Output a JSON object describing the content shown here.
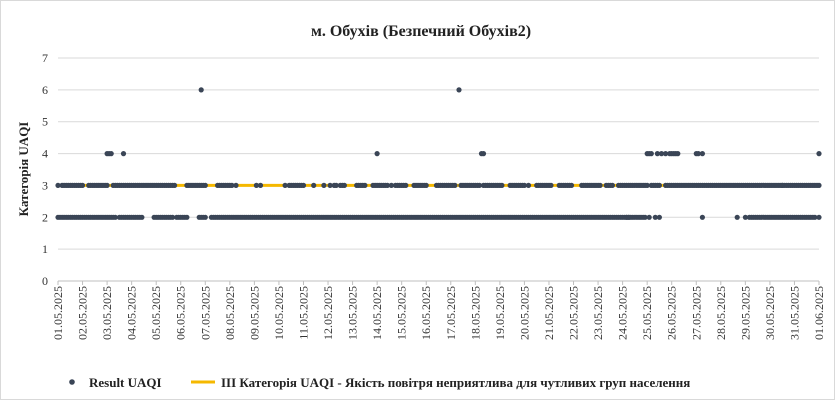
{
  "chart_data": {
    "type": "scatter",
    "title": "м. Обухів (Безпечний Обухів2)",
    "xlabel": "",
    "ylabel": "Категорія UAQI",
    "ylim": [
      0,
      7
    ],
    "y_ticks": [
      "0",
      "1",
      "2",
      "3",
      "4",
      "5",
      "6",
      "7"
    ],
    "x_ticks": [
      "01.05.2025",
      "02.05.2025",
      "03.05.2025",
      "04.05.2025",
      "05.05.2025",
      "06.05.2025",
      "07.05.2025",
      "08.05.2025",
      "09.05.2025",
      "10.05.2025",
      "11.05.2025",
      "12.05.2025",
      "13.05.2025",
      "14.05.2025",
      "15.05.2025",
      "16.05.2025",
      "17.05.2025",
      "18.05.2025",
      "19.05.2025",
      "20.05.2025",
      "21.05.2025",
      "22.05.2025",
      "23.05.2025",
      "24.05.2025",
      "25.05.2025",
      "26.05.2025",
      "27.05.2025",
      "28.05.2025",
      "29.05.2025",
      "30.05.2025",
      "31.05.2025",
      "01.06.2025"
    ],
    "x_range": [
      "01.05.2025 00:00",
      "01.06.2025 00:00"
    ],
    "grid": "horizontal",
    "legend_position": "bottom",
    "series": [
      {
        "name": "Result UAQI",
        "kind": "points",
        "color": "#3a4556",
        "segments_level2": [
          [
            "01.05.2025 00:00",
            "02.05.2025 18:00"
          ],
          [
            "02.05.2025 20:00",
            "03.05.2025 08:00"
          ],
          [
            "03.05.2025 12:00",
            "04.05.2025 10:00"
          ],
          [
            "04.05.2025 22:00",
            "05.05.2025 16:00"
          ],
          [
            "05.05.2025 20:00",
            "06.05.2025 06:00"
          ],
          [
            "06.05.2025 18:00",
            "07.05.2025 00:00"
          ],
          [
            "07.05.2025 06:00",
            "24.05.2025 22:00"
          ],
          [
            "29.05.2025 06:00",
            "31.05.2025 20:00"
          ]
        ],
        "points_level2": [
          "24.05.2025 04:00",
          "24.05.2025 06:00",
          "25.05.2025 02:00",
          "25.05.2025 08:00",
          "25.05.2025 12:00",
          "27.05.2025 06:00",
          "28.05.2025 16:00",
          "29.05.2025 00:00",
          "29.05.2025 04:00",
          "01.06.2025 00:00"
        ],
        "segments_level3": [
          [
            "01.05.2025 04:00",
            "02.05.2025 00:00"
          ],
          [
            "02.05.2025 06:00",
            "03.05.2025 00:00"
          ],
          [
            "03.05.2025 06:00",
            "05.05.2025 04:00"
          ],
          [
            "05.05.2025 06:00",
            "05.05.2025 18:00"
          ],
          [
            "06.05.2025 06:00",
            "07.05.2025 00:00"
          ],
          [
            "07.05.2025 12:00",
            "08.05.2025 02:00"
          ],
          [
            "10.05.2025 12:00",
            "11.05.2025 00:00"
          ],
          [
            "12.05.2025 06:00",
            "12.05.2025 08:00"
          ],
          [
            "12.05.2025 12:00",
            "12.05.2025 16:00"
          ],
          [
            "13.05.2025 04:00",
            "13.05.2025 12:00"
          ],
          [
            "13.05.2025 20:00",
            "14.05.2025 10:00"
          ],
          [
            "14.05.2025 18:00",
            "15.05.2025 04:00"
          ],
          [
            "15.05.2025 12:00",
            "16.05.2025 00:00"
          ],
          [
            "16.05.2025 10:00",
            "16.05.2025 20:00"
          ],
          [
            "16.05.2025 22:00",
            "17.05.2025 02:00"
          ],
          [
            "17.05.2025 10:00",
            "18.05.2025 04:00"
          ],
          [
            "18.05.2025 08:00",
            "19.05.2025 02:00"
          ],
          [
            "19.05.2025 10:00",
            "20.05.2025 00:00"
          ],
          [
            "20.05.2025 12:00",
            "21.05.2025 02:00"
          ],
          [
            "21.05.2025 10:00",
            "21.05.2025 22:00"
          ],
          [
            "22.05.2025 08:00",
            "23.05.2025 02:00"
          ],
          [
            "23.05.2025 08:00",
            "23.05.2025 14:00"
          ],
          [
            "23.05.2025 20:00",
            "25.05.2025 00:00"
          ],
          [
            "25.05.2025 04:00",
            "25.05.2025 12:00"
          ],
          [
            "25.05.2025 18:00",
            "26.05.2025 18:00"
          ],
          [
            "26.05.2025 20:00",
            "31.05.2025 00:00"
          ],
          [
            "31.05.2025 02:00",
            "01.06.2025 00:00"
          ]
        ],
        "points_level3": [
          "01.05.2025 00:00",
          "08.05.2025 06:00",
          "09.05.2025 02:00",
          "09.05.2025 06:00",
          "10.05.2025 06:00",
          "10.05.2025 10:00",
          "11.05.2025 10:00",
          "11.05.2025 20:00",
          "12.05.2025 02:00",
          "14.05.2025 14:00",
          "17.05.2025 04:00",
          "20.05.2025 04:00",
          "30.05.2025 12:00"
        ],
        "points_level4": [
          "03.05.2025 00:00",
          "03.05.2025 02:00",
          "03.05.2025 04:00",
          "03.05.2025 16:00",
          "14.05.2025 00:00",
          "18.05.2025 06:00",
          "18.05.2025 08:00",
          "25.05.2025 00:00",
          "25.05.2025 02:00",
          "25.05.2025 04:00",
          "25.05.2025 10:00",
          "25.05.2025 14:00",
          "25.05.2025 18:00",
          "25.05.2025 22:00",
          "26.05.2025 00:00",
          "26.05.2025 02:00",
          "26.05.2025 04:00",
          "26.05.2025 06:00",
          "27.05.2025 00:00",
          "27.05.2025 02:00",
          "27.05.2025 06:00",
          "01.06.2025 00:00"
        ],
        "points_level6": [
          "06.05.2025 20:00",
          "17.05.2025 08:00"
        ]
      },
      {
        "name": "ІІІ Категорія UAQI - Якість повітря неприятлива для чутливих груп населення",
        "kind": "line",
        "color": "#f5b800",
        "value": 3
      }
    ]
  }
}
